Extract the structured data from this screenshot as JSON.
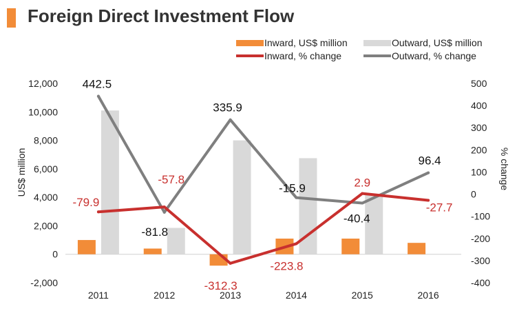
{
  "title": "Foreign Direct Investment Flow",
  "colors": {
    "accent": "#F28C38",
    "inward_bar": "#F28C38",
    "outward_bar": "#D9D9D9",
    "inward_line": "#C8302E",
    "outward_line": "#7F7F7F",
    "title_text": "#333333"
  },
  "chart_data": {
    "type": "bar+line",
    "categories": [
      "2011",
      "2012",
      "2013",
      "2014",
      "2015",
      "2016"
    ],
    "ylabel": "US$ million",
    "y2label": "% change",
    "ylim": [
      -2000,
      12000
    ],
    "y2lim": [
      -400,
      500
    ],
    "yticks": [
      "-2,000",
      "0",
      "2,000",
      "4,000",
      "6,000",
      "8,000",
      "10,000",
      "12,000"
    ],
    "ytick_values": [
      -2000,
      0,
      2000,
      4000,
      6000,
      8000,
      10000,
      12000
    ],
    "y2ticks": [
      "-400",
      "-300",
      "-200",
      "-100",
      "0",
      "100",
      "200",
      "300",
      "400",
      "500"
    ],
    "y2tick_values": [
      -400,
      -300,
      -200,
      -100,
      0,
      100,
      200,
      300,
      400,
      500
    ],
    "series": [
      {
        "name": "Inward, US$ million",
        "kind": "bar",
        "axis": "left",
        "values": [
          1000,
          400,
          -800,
          1100,
          1100,
          800
        ]
      },
      {
        "name": "Outward, US$ million",
        "kind": "bar",
        "axis": "left",
        "values": [
          10100,
          1850,
          8000,
          6750,
          4250,
          null
        ]
      },
      {
        "name": "Inward, % change",
        "kind": "line",
        "axis": "right",
        "values": [
          -79.9,
          -57.8,
          -312.3,
          -223.8,
          2.9,
          -27.7
        ],
        "labels": [
          "-79.9",
          "-57.8",
          "-312.3",
          "-223.8",
          "2.9",
          "-27.7"
        ]
      },
      {
        "name": "Outward, % change",
        "kind": "line",
        "axis": "right",
        "values": [
          442.5,
          -81.8,
          335.9,
          -15.9,
          -40.4,
          96.4
        ],
        "labels": [
          "442.5",
          "-81.8",
          "335.9",
          "-15.9",
          "-40.4",
          "96.4"
        ]
      }
    ],
    "legend_position": "top-right"
  }
}
